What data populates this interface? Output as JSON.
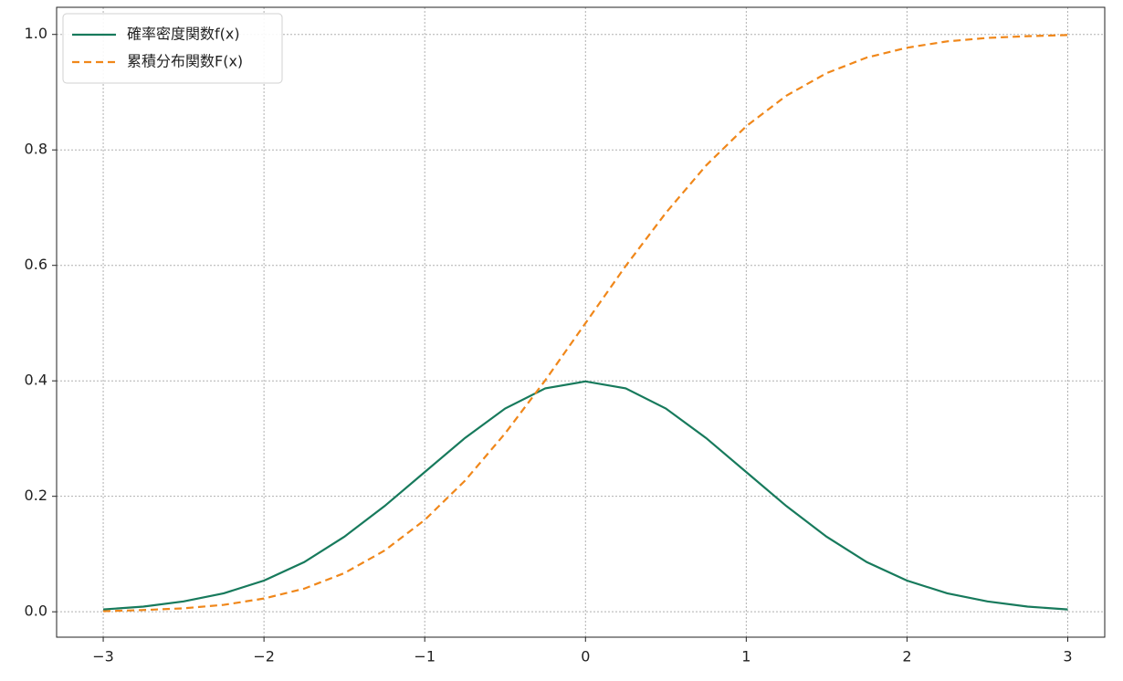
{
  "chart_data": {
    "type": "line",
    "x": [
      -3,
      -2.75,
      -2.5,
      -2.25,
      -2,
      -1.75,
      -1.5,
      -1.25,
      -1,
      -0.75,
      -0.5,
      -0.25,
      0,
      0.25,
      0.5,
      0.75,
      1,
      1.25,
      1.5,
      1.75,
      2,
      2.25,
      2.5,
      2.75,
      3
    ],
    "series": [
      {
        "name": "確率密度関数f(x)",
        "color": "#177a5c",
        "linestyle": "solid",
        "values": [
          0.004,
          0.009,
          0.018,
          0.032,
          0.054,
          0.086,
          0.13,
          0.183,
          0.242,
          0.301,
          0.352,
          0.387,
          0.399,
          0.387,
          0.352,
          0.301,
          0.242,
          0.183,
          0.13,
          0.086,
          0.054,
          0.032,
          0.018,
          0.009,
          0.004
        ]
      },
      {
        "name": "累積分布関数F(x)",
        "color": "#f0871a",
        "linestyle": "dashed",
        "values": [
          0.001,
          0.003,
          0.006,
          0.012,
          0.023,
          0.04,
          0.067,
          0.106,
          0.159,
          0.227,
          0.309,
          0.401,
          0.5,
          0.599,
          0.691,
          0.773,
          0.841,
          0.894,
          0.933,
          0.96,
          0.977,
          0.988,
          0.994,
          0.997,
          0.999
        ]
      }
    ],
    "xlim": [
      -3.29,
      3.23
    ],
    "ylim": [
      -0.044,
      1.047
    ],
    "xticks": [
      {
        "value": -3,
        "label": "−3"
      },
      {
        "value": -2,
        "label": "−2"
      },
      {
        "value": -1,
        "label": "−1"
      },
      0,
      1,
      2,
      3
    ],
    "yticks": [
      {
        "value": 0,
        "label": "0.0"
      },
      0.2,
      0.4,
      0.6,
      0.8,
      {
        "value": 1,
        "label": "1.0"
      }
    ],
    "grid": true,
    "legend": "upper-left"
  }
}
